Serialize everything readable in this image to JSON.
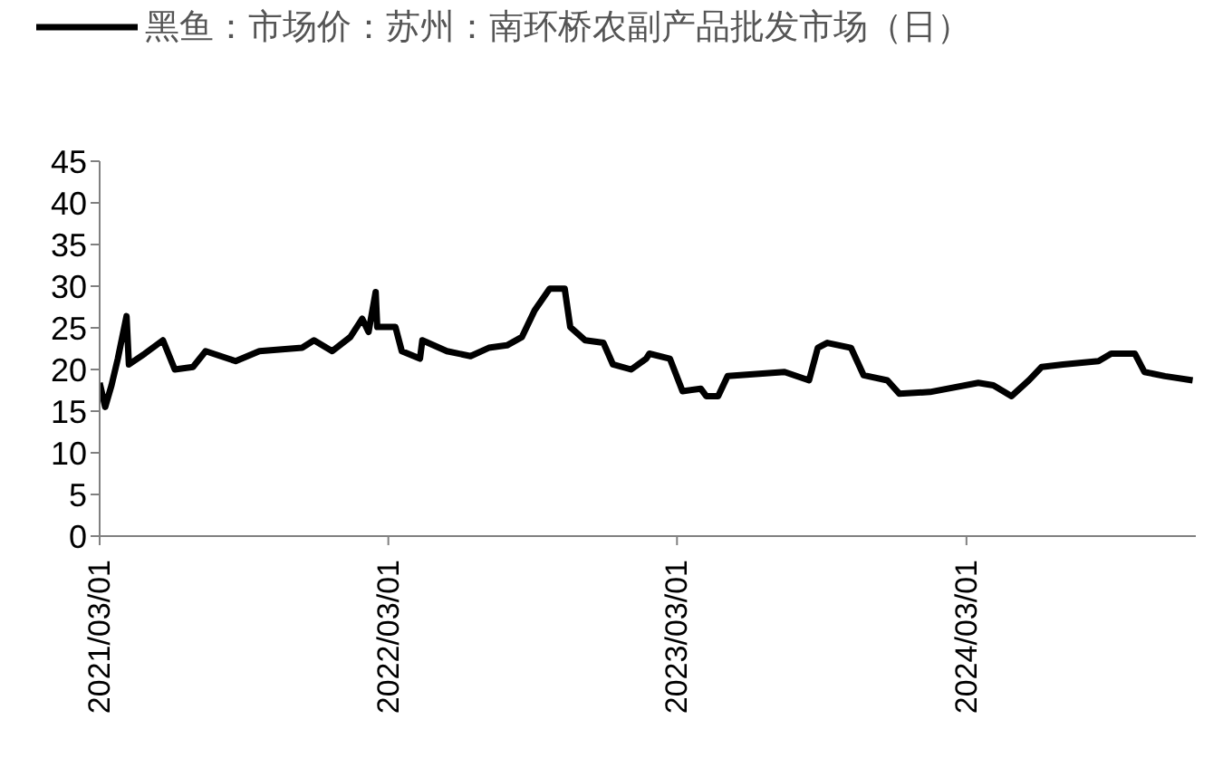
{
  "chart_data": {
    "type": "line",
    "legend": "top left",
    "marker": "none",
    "line_style": "solid",
    "xlim": [
      "2021-03-01",
      "2024-12-16"
    ],
    "xticks": [
      {
        "value": "2021-03-01",
        "label": "2021/03/01"
      },
      {
        "value": "2022-03-01",
        "label": "2022/03/01"
      },
      {
        "value": "2023-03-01",
        "label": "2023/03/01"
      },
      {
        "value": "2024-03-01",
        "label": "2024/03/01"
      }
    ],
    "ylim": [
      0,
      45
    ],
    "yticks": [
      0,
      5,
      10,
      15,
      20,
      25,
      30,
      35,
      40,
      45
    ],
    "grid": false,
    "x": [
      "2021-03-01",
      "2021-03-08",
      "2021-03-16",
      "2021-03-24",
      "2021-04-04",
      "2021-04-07",
      "2021-04-27",
      "2021-05-20",
      "2021-06-04",
      "2021-06-27",
      "2021-07-13",
      "2021-08-20",
      "2021-09-19",
      "2021-11-12",
      "2021-11-27",
      "2021-12-20",
      "2022-01-12",
      "2022-01-27",
      "2022-02-04",
      "2022-02-13",
      "2022-02-15",
      "2022-03-10",
      "2022-03-18",
      "2022-04-10",
      "2022-04-13",
      "2022-05-14",
      "2022-06-13",
      "2022-07-06",
      "2022-07-29",
      "2022-08-17",
      "2022-09-02",
      "2022-09-21",
      "2022-10-10",
      "2022-10-17",
      "2022-11-05",
      "2022-11-28",
      "2022-12-10",
      "2023-01-02",
      "2023-01-21",
      "2023-01-25",
      "2023-02-20",
      "2023-03-08",
      "2023-03-31",
      "2023-04-07",
      "2023-04-22",
      "2023-05-04",
      "2023-07-15",
      "2023-08-15",
      "2023-08-26",
      "2023-09-07",
      "2023-10-07",
      "2023-10-23",
      "2023-11-22",
      "2023-12-07",
      "2024-01-15",
      "2024-03-16",
      "2024-04-04",
      "2024-04-27",
      "2024-05-19",
      "2024-06-04",
      "2024-07-01",
      "2024-08-15",
      "2024-08-31",
      "2024-09-30",
      "2024-10-12",
      "2024-11-07",
      "2024-12-12"
    ],
    "series": [
      {
        "name": "黑鱼：市场价：苏州：南环桥农副产品批发市场（日）",
        "color": "#000000",
        "values": [
          18.4,
          15.5,
          18.1,
          21.3,
          26.4,
          20.6,
          21.9,
          23.5,
          20,
          20.3,
          22.2,
          21,
          22.2,
          22.6,
          23.5,
          22.2,
          23.9,
          26.1,
          24.5,
          29.3,
          25.1,
          25.1,
          22.2,
          21.3,
          23.5,
          22.2,
          21.6,
          22.6,
          22.9,
          23.9,
          27.1,
          29.7,
          29.7,
          25.1,
          23.5,
          23.2,
          20.6,
          20,
          21.3,
          21.9,
          21.3,
          17.4,
          17.7,
          16.8,
          16.8,
          19.2,
          19.7,
          18.7,
          22.6,
          23.2,
          22.6,
          19.3,
          18.7,
          17.1,
          17.3,
          18.4,
          18.1,
          16.8,
          18.7,
          20.3,
          20.6,
          21,
          21.9,
          21.9,
          19.7,
          19.2,
          18.7
        ]
      }
    ]
  }
}
